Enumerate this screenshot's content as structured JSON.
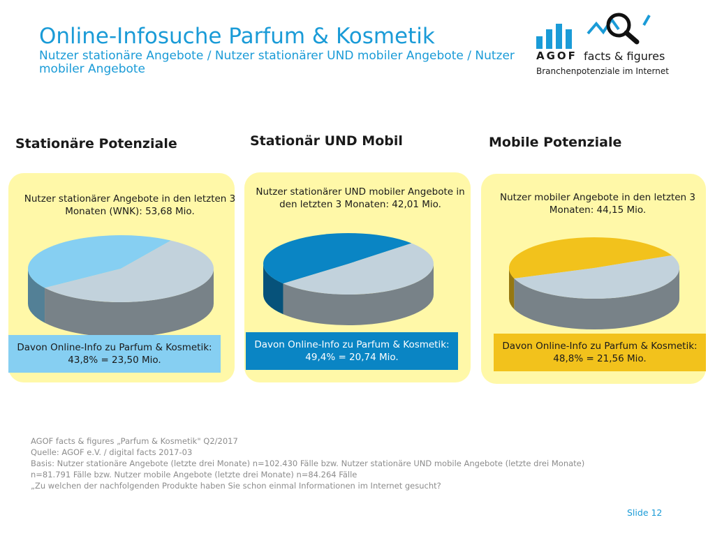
{
  "header": {
    "title": "Online-Infosuche Parfum & Kosmetik",
    "subtitle": "Nutzer stationäre Angebote / Nutzer stationärer UND mobiler Angebote / Nutzer mobiler Angebote"
  },
  "logo": {
    "brand": "AGOF",
    "product": "facts & figures",
    "tagline": "Branchenpotenziale im Internet",
    "icon": "bar-chart-magnifier-icon"
  },
  "colors": {
    "accent": "#1a9bd7",
    "panel_bg": "#fff8a8",
    "pie_rest": "#c2d2dc",
    "stationary_slice": "#86cff2",
    "both_slice": "#0a85c4",
    "mobile_slice": "#f2c21c"
  },
  "chart_data": [
    {
      "type": "pie",
      "title": "Stationäre Potenziale",
      "description": "Nutzer stationärer Angebote in den letzten 3 Monaten (WNK): 53,68 Mio.",
      "highlight": "Davon Online-Info zu Parfum & Kosmetik: 43,8% = 23,50 Mio.",
      "slices": [
        {
          "name": "Online-Info zu Parfum & Kosmetik",
          "value": 43.8
        },
        {
          "name": "",
          "value": 56.2
        }
      ]
    },
    {
      "type": "pie",
      "title": "Stationär UND Mobil",
      "description": "Nutzer stationärer UND mobiler Angebote in den letzten 3 Monaten: 42,01 Mio.",
      "highlight": "Davon Online-Info zu Parfum & Kosmetik: 49,4% = 20,74 Mio.",
      "slices": [
        {
          "name": "Online-Info zu Parfum & Kosmetik",
          "value": 49.4
        },
        {
          "name": "",
          "value": 50.6
        }
      ]
    },
    {
      "type": "pie",
      "title": "Mobile Potenziale",
      "description": "Nutzer mobiler Angebote in den letzten 3 Monaten: 44,15 Mio.",
      "highlight": "Davon Online-Info zu Parfum & Kosmetik: 48,8% = 21,56 Mio.",
      "slices": [
        {
          "name": "Online-Info zu Parfum & Kosmetik",
          "value": 48.8
        },
        {
          "name": "",
          "value": 51.2
        }
      ]
    }
  ],
  "footer": {
    "lines": [
      "AGOF facts & figures „Parfum & Kosmetik\" Q2/2017",
      "Quelle: AGOF e.V. / digital facts 2017-03",
      "Basis: Nutzer stationäre Angebote (letzte drei Monate) n=102.430 Fälle bzw. Nutzer stationäre UND mobile Angebote (letzte drei Monate)",
      "n=81.791 Fälle bzw. Nutzer mobile Angebote (letzte drei Monate) n=84.264 Fälle",
      "„Zu welchen der nachfolgenden Produkte haben Sie schon einmal Informationen im Internet gesucht?"
    ]
  },
  "slide_label": "Slide 12"
}
